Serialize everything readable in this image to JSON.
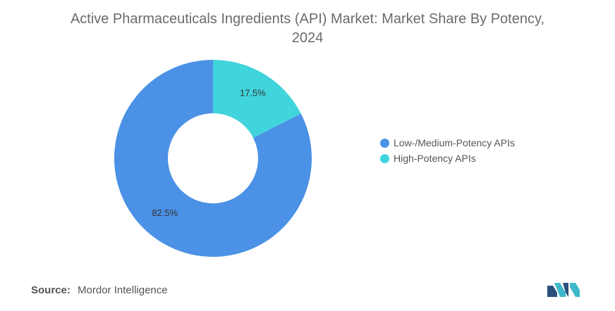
{
  "chart_data": {
    "type": "pie",
    "title": "Active Pharmaceuticals Ingredients (API) Market: Market Share By Potency, 2024",
    "series": [
      {
        "name": "High-Potency APIs",
        "value": 17.5,
        "label": "17.5%",
        "color": "#40d4dc"
      },
      {
        "name": "Low-/Medium-Potency APIs",
        "value": 82.5,
        "label": "82.5%",
        "color": "#4b91e6"
      }
    ],
    "legend": [
      {
        "name": "Low-/Medium-Potency APIs",
        "color": "#4b91e6"
      },
      {
        "name": "High-Potency APIs",
        "color": "#40d4dc"
      }
    ],
    "legend_position": "right",
    "donut": true
  },
  "title_line1": "Active Pharmaceuticals Ingredients (API) Market: Market Share By Potency,",
  "title_line2": "2024",
  "source": {
    "label": "Source:",
    "text": "Mordor Intelligence"
  }
}
